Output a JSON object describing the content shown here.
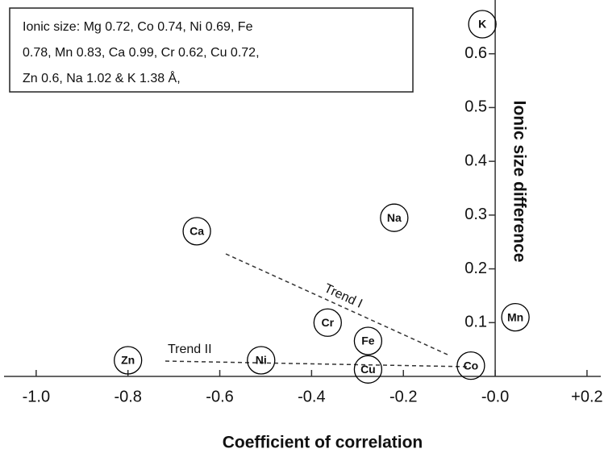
{
  "chart_data": {
    "type": "scatter",
    "x_label": "Coefficient of correlation",
    "y_label": "Ionic size difference",
    "annotation": [
      "Ionic size: Mg 0.72, Co 0.74, Ni 0.69, Fe",
      "0.78,  Mn 0.83, Ca 0.99, Cr 0.62, Cu 0.72,",
      "Zn 0.6, Na 1.02 & K 1.38 Å,"
    ],
    "trend_labels": [
      "Trend I",
      "Trend II"
    ],
    "point_labels": [
      "K",
      "Na",
      "Ca",
      "Mn",
      "Cr",
      "Fe",
      "Zn",
      "Ni",
      "Cu",
      "Co"
    ],
    "x": [
      -0.028,
      -0.22,
      -0.65,
      0.044,
      -0.365,
      -0.277,
      -0.8,
      -0.51,
      -0.277,
      -0.053
    ],
    "values": [
      0.655,
      0.295,
      0.27,
      0.11,
      0.1,
      0.066,
      0.03,
      0.03,
      0.013,
      0.02
    ],
    "xlim": [
      -1.07,
      0.23
    ],
    "ylim": [
      0,
      0.7
    ],
    "xticks": [
      {
        "value": -1.0,
        "label": "-1.0"
      },
      {
        "value": -0.8,
        "label": "-0.8"
      },
      {
        "value": -0.6,
        "label": "-0.6"
      },
      {
        "value": -0.4,
        "label": "-0.4"
      },
      {
        "value": -0.2,
        "label": "-0.2"
      },
      {
        "value": 0,
        "label": "-0.0"
      },
      {
        "value": 0.2,
        "label": "+0.2"
      }
    ],
    "yticks": [
      0.1,
      0.2,
      0.3,
      0.4,
      0.5,
      0.6
    ],
    "color": "#000000"
  }
}
